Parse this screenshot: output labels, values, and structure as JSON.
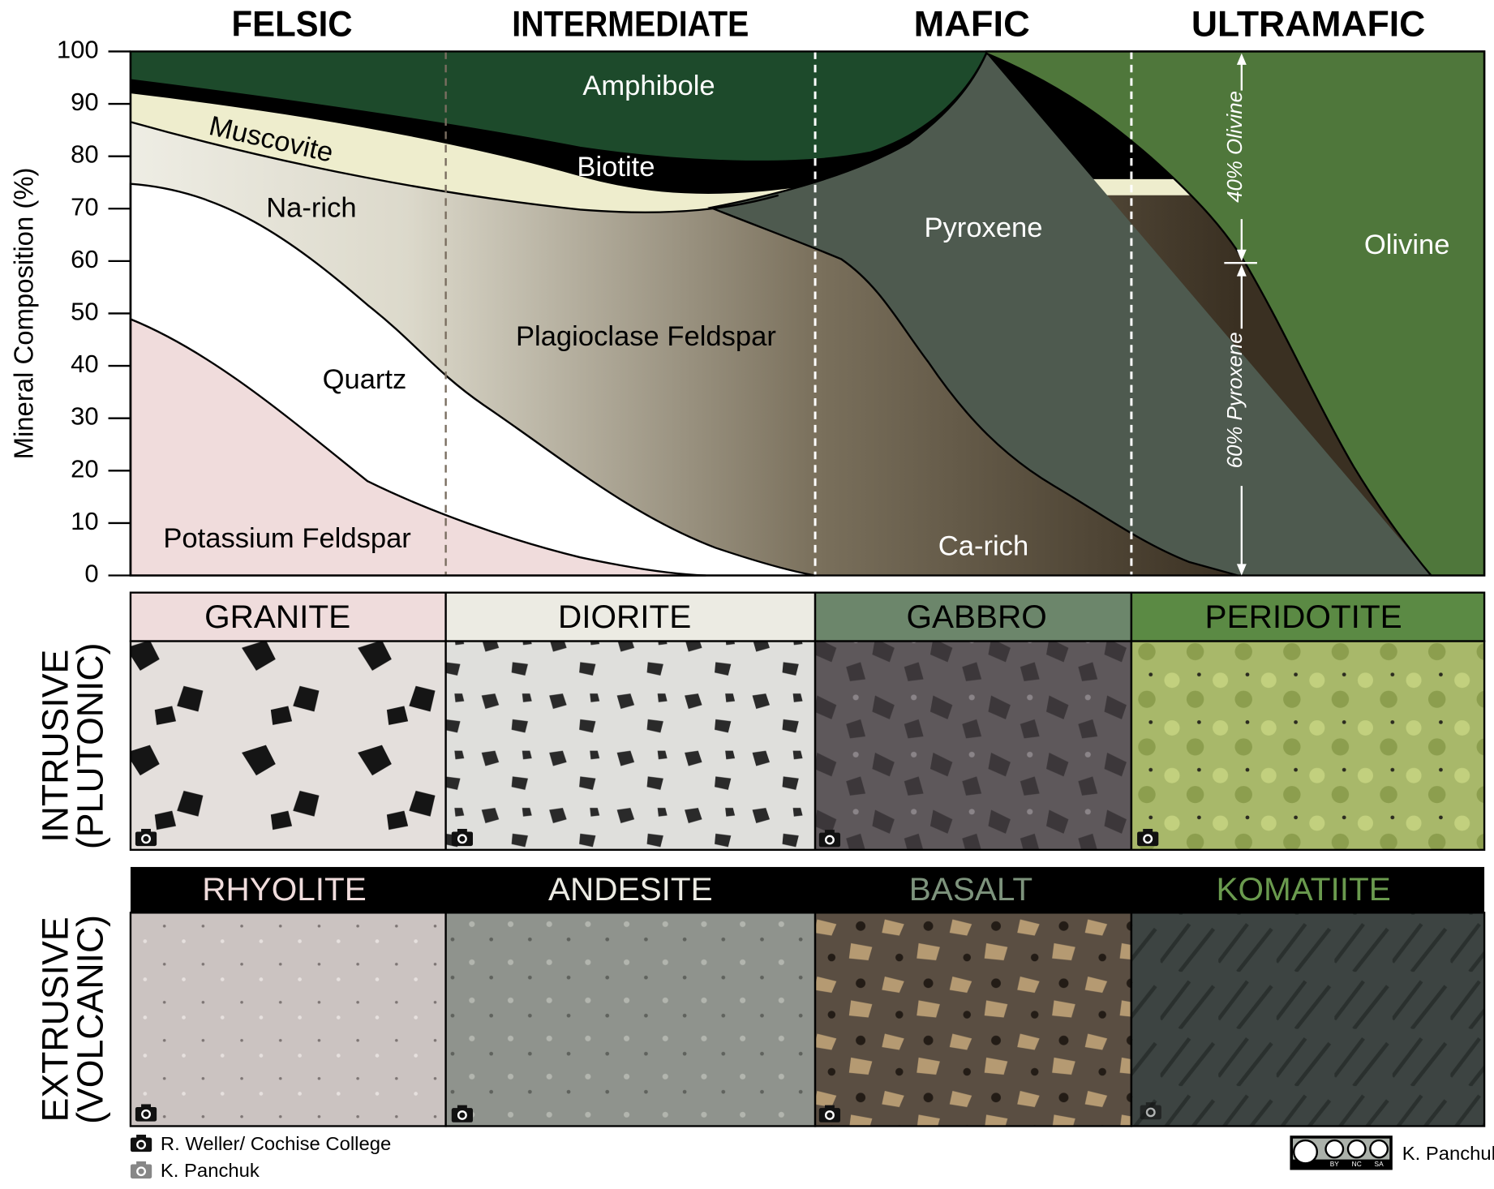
{
  "column_headers": [
    "FELSIC",
    "INTERMEDIATE",
    "MAFIC",
    "ULTRAMAFIC"
  ],
  "chart": {
    "y_label": "Mineral Composition (%)",
    "ylim": [
      0,
      100
    ],
    "yticks": [
      0,
      10,
      20,
      30,
      40,
      50,
      60,
      70,
      80,
      90,
      100
    ]
  },
  "minerals": {
    "amphibole": "Amphibole",
    "biotite": "Biotite",
    "muscovite": "Muscovite",
    "na_rich": "Na-rich",
    "quartz": "Quartz",
    "plagioclase": "Plagioclase Feldspar",
    "potassium_feldspar": "Potassium Feldspar",
    "pyroxene": "Pyroxene",
    "ca_rich": "Ca-rich",
    "olivine": "Olivine"
  },
  "annotations": [
    "40% Olivine",
    "60% Pyroxene"
  ],
  "rows": [
    {
      "label_lines": [
        "INTRUSIVE",
        "(PLUTONIC)"
      ],
      "rocks": [
        "GRANITE",
        "DIORITE",
        "GABBRO",
        "PERIDOTITE"
      ]
    },
    {
      "label_lines": [
        "EXTRUSIVE",
        "(VOLCANIC)"
      ],
      "rocks": [
        "RHYOLITE",
        "ANDESITE",
        "BASALT",
        "KOMATIITE"
      ]
    }
  ],
  "credits": {
    "photo_credits": [
      "R. Weller/ Cochise College",
      "K. Panchuk"
    ],
    "license": [
      "BY",
      "NC",
      "SA"
    ],
    "author": "K. Panchuk"
  }
}
